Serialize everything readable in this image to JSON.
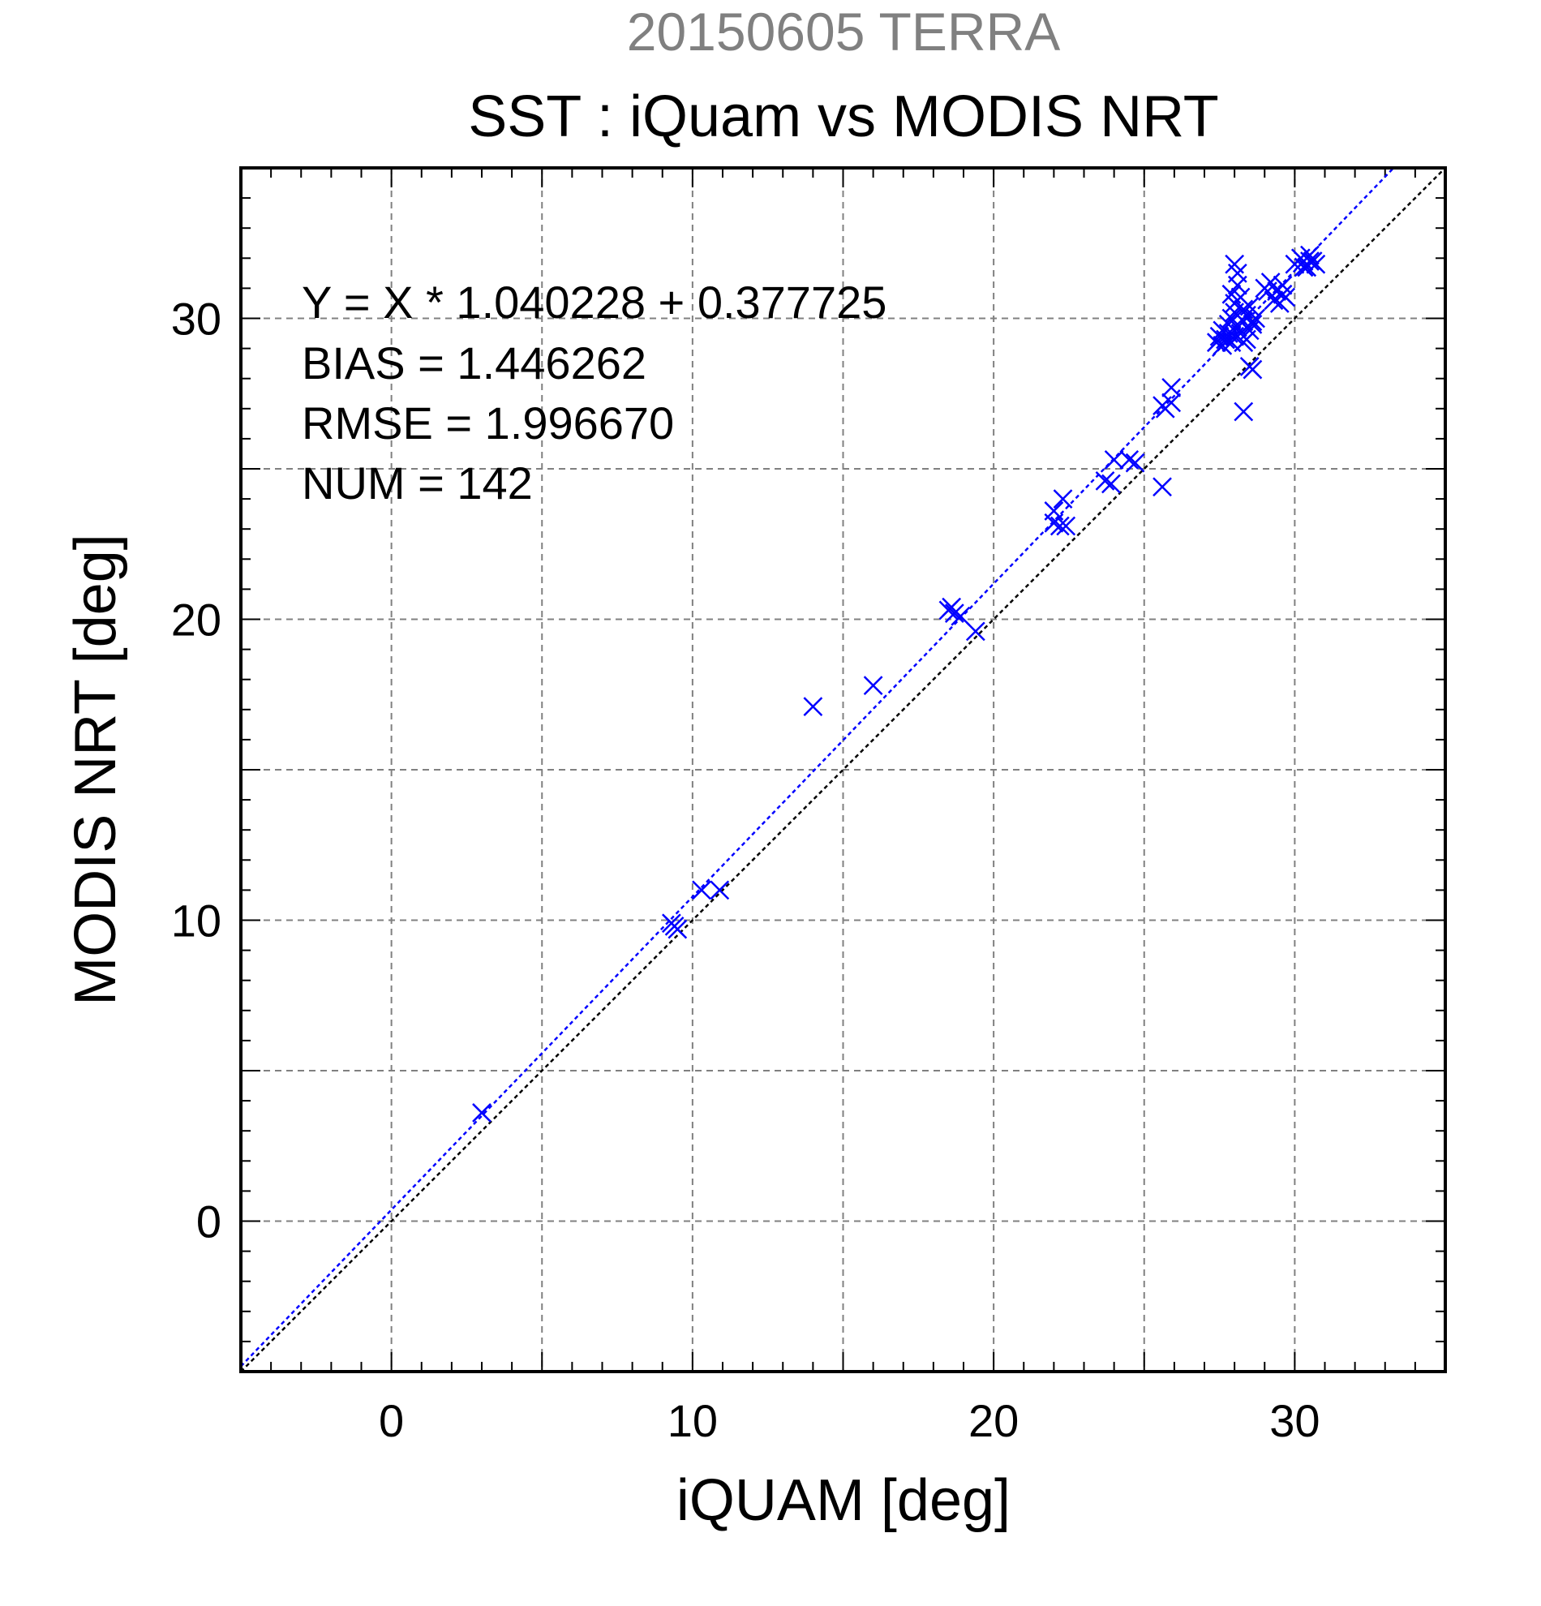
{
  "chart_data": {
    "type": "scatter",
    "title": "20150605 TERRA",
    "subtitle": "SST : iQuam vs MODIS NRT",
    "xlabel": "iQUAM [deg]",
    "ylabel": "MODIS NRT [deg]",
    "xlim": [
      -5,
      35
    ],
    "ylim": [
      -5,
      35
    ],
    "xticks": [
      0,
      10,
      20,
      30
    ],
    "yticks": [
      0,
      10,
      20,
      30
    ],
    "grid_step": 5,
    "grid": true,
    "stats": [
      "Y = X * 1.040228 + 0.377725",
      "BIAS = 1.446262",
      "RMSE = 1.996670",
      "NUM = 142"
    ],
    "regression": {
      "slope": 1.040228,
      "intercept": 0.377725
    },
    "colors": {
      "points": "#0000ff",
      "fit_line": "#0000ff",
      "identity_line": "#000000",
      "grid": "#808080",
      "title": "#808080"
    },
    "points": [
      [
        3.0,
        3.6
      ],
      [
        9.3,
        9.9
      ],
      [
        9.5,
        9.7
      ],
      [
        9.4,
        9.8
      ],
      [
        10.3,
        11.0
      ],
      [
        10.9,
        11.0
      ],
      [
        14.0,
        17.1
      ],
      [
        16.0,
        17.8
      ],
      [
        18.5,
        20.3
      ],
      [
        18.7,
        20.2
      ],
      [
        18.9,
        20.1
      ],
      [
        18.6,
        20.4
      ],
      [
        19.4,
        19.6
      ],
      [
        22.0,
        23.2
      ],
      [
        22.2,
        23.1
      ],
      [
        22.4,
        23.1
      ],
      [
        22.0,
        23.6
      ],
      [
        22.3,
        24.0
      ],
      [
        23.7,
        24.6
      ],
      [
        23.9,
        24.5
      ],
      [
        24.0,
        25.3
      ],
      [
        24.5,
        25.3
      ],
      [
        24.7,
        25.2
      ],
      [
        25.6,
        27.1
      ],
      [
        25.7,
        27.0
      ],
      [
        25.9,
        27.2
      ],
      [
        25.9,
        27.7
      ],
      [
        25.6,
        24.4
      ],
      [
        27.4,
        29.2
      ],
      [
        27.5,
        29.4
      ],
      [
        27.6,
        29.1
      ],
      [
        27.7,
        29.3
      ],
      [
        27.8,
        29.5
      ],
      [
        27.9,
        29.2
      ],
      [
        28.0,
        29.4
      ],
      [
        27.6,
        29.6
      ],
      [
        27.8,
        29.8
      ],
      [
        27.9,
        30.0
      ],
      [
        28.0,
        30.2
      ],
      [
        28.1,
        29.7
      ],
      [
        28.2,
        29.5
      ],
      [
        28.3,
        29.9
      ],
      [
        28.4,
        30.1
      ],
      [
        28.5,
        29.6
      ],
      [
        28.6,
        29.8
      ],
      [
        28.0,
        30.5
      ],
      [
        28.2,
        30.7
      ],
      [
        28.3,
        30.3
      ],
      [
        28.5,
        30.4
      ],
      [
        27.9,
        30.8
      ],
      [
        28.1,
        31.1
      ],
      [
        28.0,
        31.8
      ],
      [
        28.1,
        31.5
      ],
      [
        28.4,
        29.3
      ],
      [
        28.6,
        29.9
      ],
      [
        28.7,
        30.0
      ],
      [
        28.3,
        29.2
      ],
      [
        28.5,
        28.4
      ],
      [
        28.6,
        28.3
      ],
      [
        28.3,
        26.9
      ],
      [
        29.0,
        31.0
      ],
      [
        29.2,
        31.2
      ],
      [
        29.4,
        30.9
      ],
      [
        29.3,
        30.6
      ],
      [
        29.5,
        30.5
      ],
      [
        29.6,
        30.8
      ],
      [
        29.7,
        30.7
      ],
      [
        29.1,
        30.9
      ],
      [
        29.6,
        31.1
      ],
      [
        30.0,
        31.8
      ],
      [
        30.2,
        32.0
      ],
      [
        30.3,
        31.9
      ],
      [
        30.4,
        31.7
      ],
      [
        30.5,
        32.1
      ],
      [
        30.6,
        31.9
      ],
      [
        30.7,
        31.8
      ],
      [
        30.3,
        31.7
      ],
      [
        30.5,
        31.9
      ]
    ]
  }
}
